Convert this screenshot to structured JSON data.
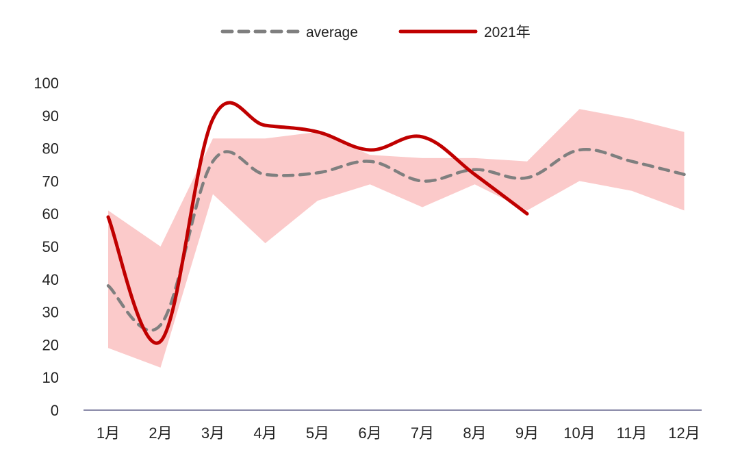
{
  "chart_data": {
    "type": "line",
    "categories": [
      "1月",
      "2月",
      "3月",
      "4月",
      "5月",
      "6月",
      "7月",
      "8月",
      "9月",
      "10月",
      "11月",
      "12月"
    ],
    "ylim": [
      0,
      100
    ],
    "yticks": [
      0,
      10,
      20,
      30,
      40,
      50,
      60,
      70,
      80,
      90,
      100
    ],
    "grid": false,
    "legend_position": "top-center",
    "band": {
      "upper": [
        61,
        50,
        83,
        83,
        85,
        78,
        77,
        77,
        76,
        92,
        89,
        85
      ],
      "lower": [
        19,
        13,
        66,
        51,
        64,
        69,
        62,
        69,
        61,
        70,
        67,
        61
      ],
      "color": "#fbcaca"
    },
    "series": [
      {
        "name": "average",
        "values": [
          38,
          26,
          76,
          72,
          72.5,
          76,
          70,
          73.5,
          71,
          79.5,
          76,
          72
        ],
        "color": "#7f7f7f",
        "style": "dashed"
      },
      {
        "name": "2021年",
        "values": [
          59,
          21,
          89,
          87,
          85,
          79.5,
          83.5,
          72,
          60,
          null,
          null,
          null
        ],
        "color": "#c00000",
        "style": "solid"
      }
    ]
  }
}
